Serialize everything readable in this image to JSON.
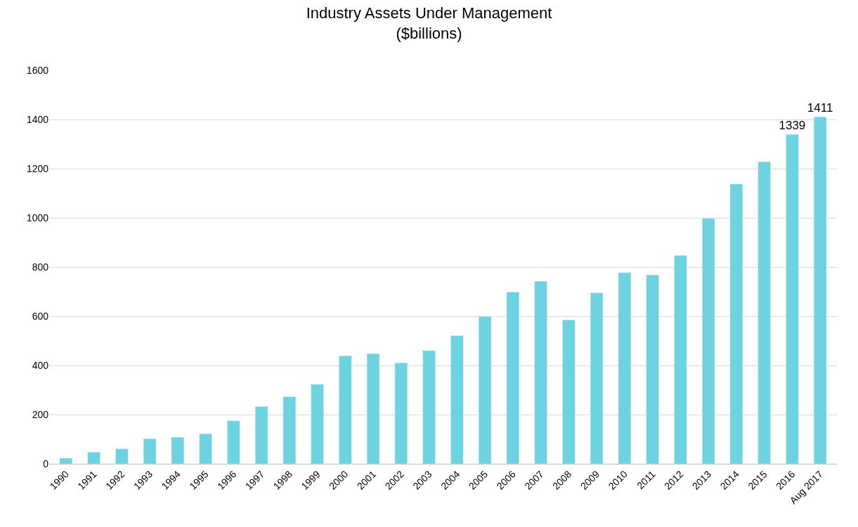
{
  "chart_data": {
    "type": "bar",
    "title": "Industry Assets Under Management\n($billions)",
    "categories": [
      "1990",
      "1991",
      "1992",
      "1993",
      "1994",
      "1995",
      "1996",
      "1997",
      "1998",
      "1999",
      "2000",
      "2001",
      "2002",
      "2003",
      "2004",
      "2005",
      "2006",
      "2007",
      "2008",
      "2009",
      "2010",
      "2011",
      "2012",
      "2013",
      "2014",
      "2015",
      "2016",
      "Aug 2017"
    ],
    "values": [
      23,
      47,
      61,
      102,
      108,
      122,
      175,
      233,
      273,
      323,
      439,
      448,
      410,
      460,
      521,
      599,
      698,
      742,
      585,
      695,
      777,
      768,
      847,
      998,
      1137,
      1228,
      1339,
      1411
    ],
    "value_labels": [
      null,
      null,
      null,
      null,
      null,
      null,
      null,
      null,
      null,
      null,
      null,
      null,
      null,
      null,
      null,
      null,
      null,
      null,
      null,
      null,
      null,
      null,
      null,
      null,
      null,
      null,
      "1339",
      "1411"
    ],
    "color": "#6dd3e0",
    "ylim": [
      0,
      1600
    ],
    "yticks": [
      0,
      200,
      400,
      600,
      800,
      1000,
      1200,
      1400,
      1600
    ],
    "grid": "y"
  }
}
